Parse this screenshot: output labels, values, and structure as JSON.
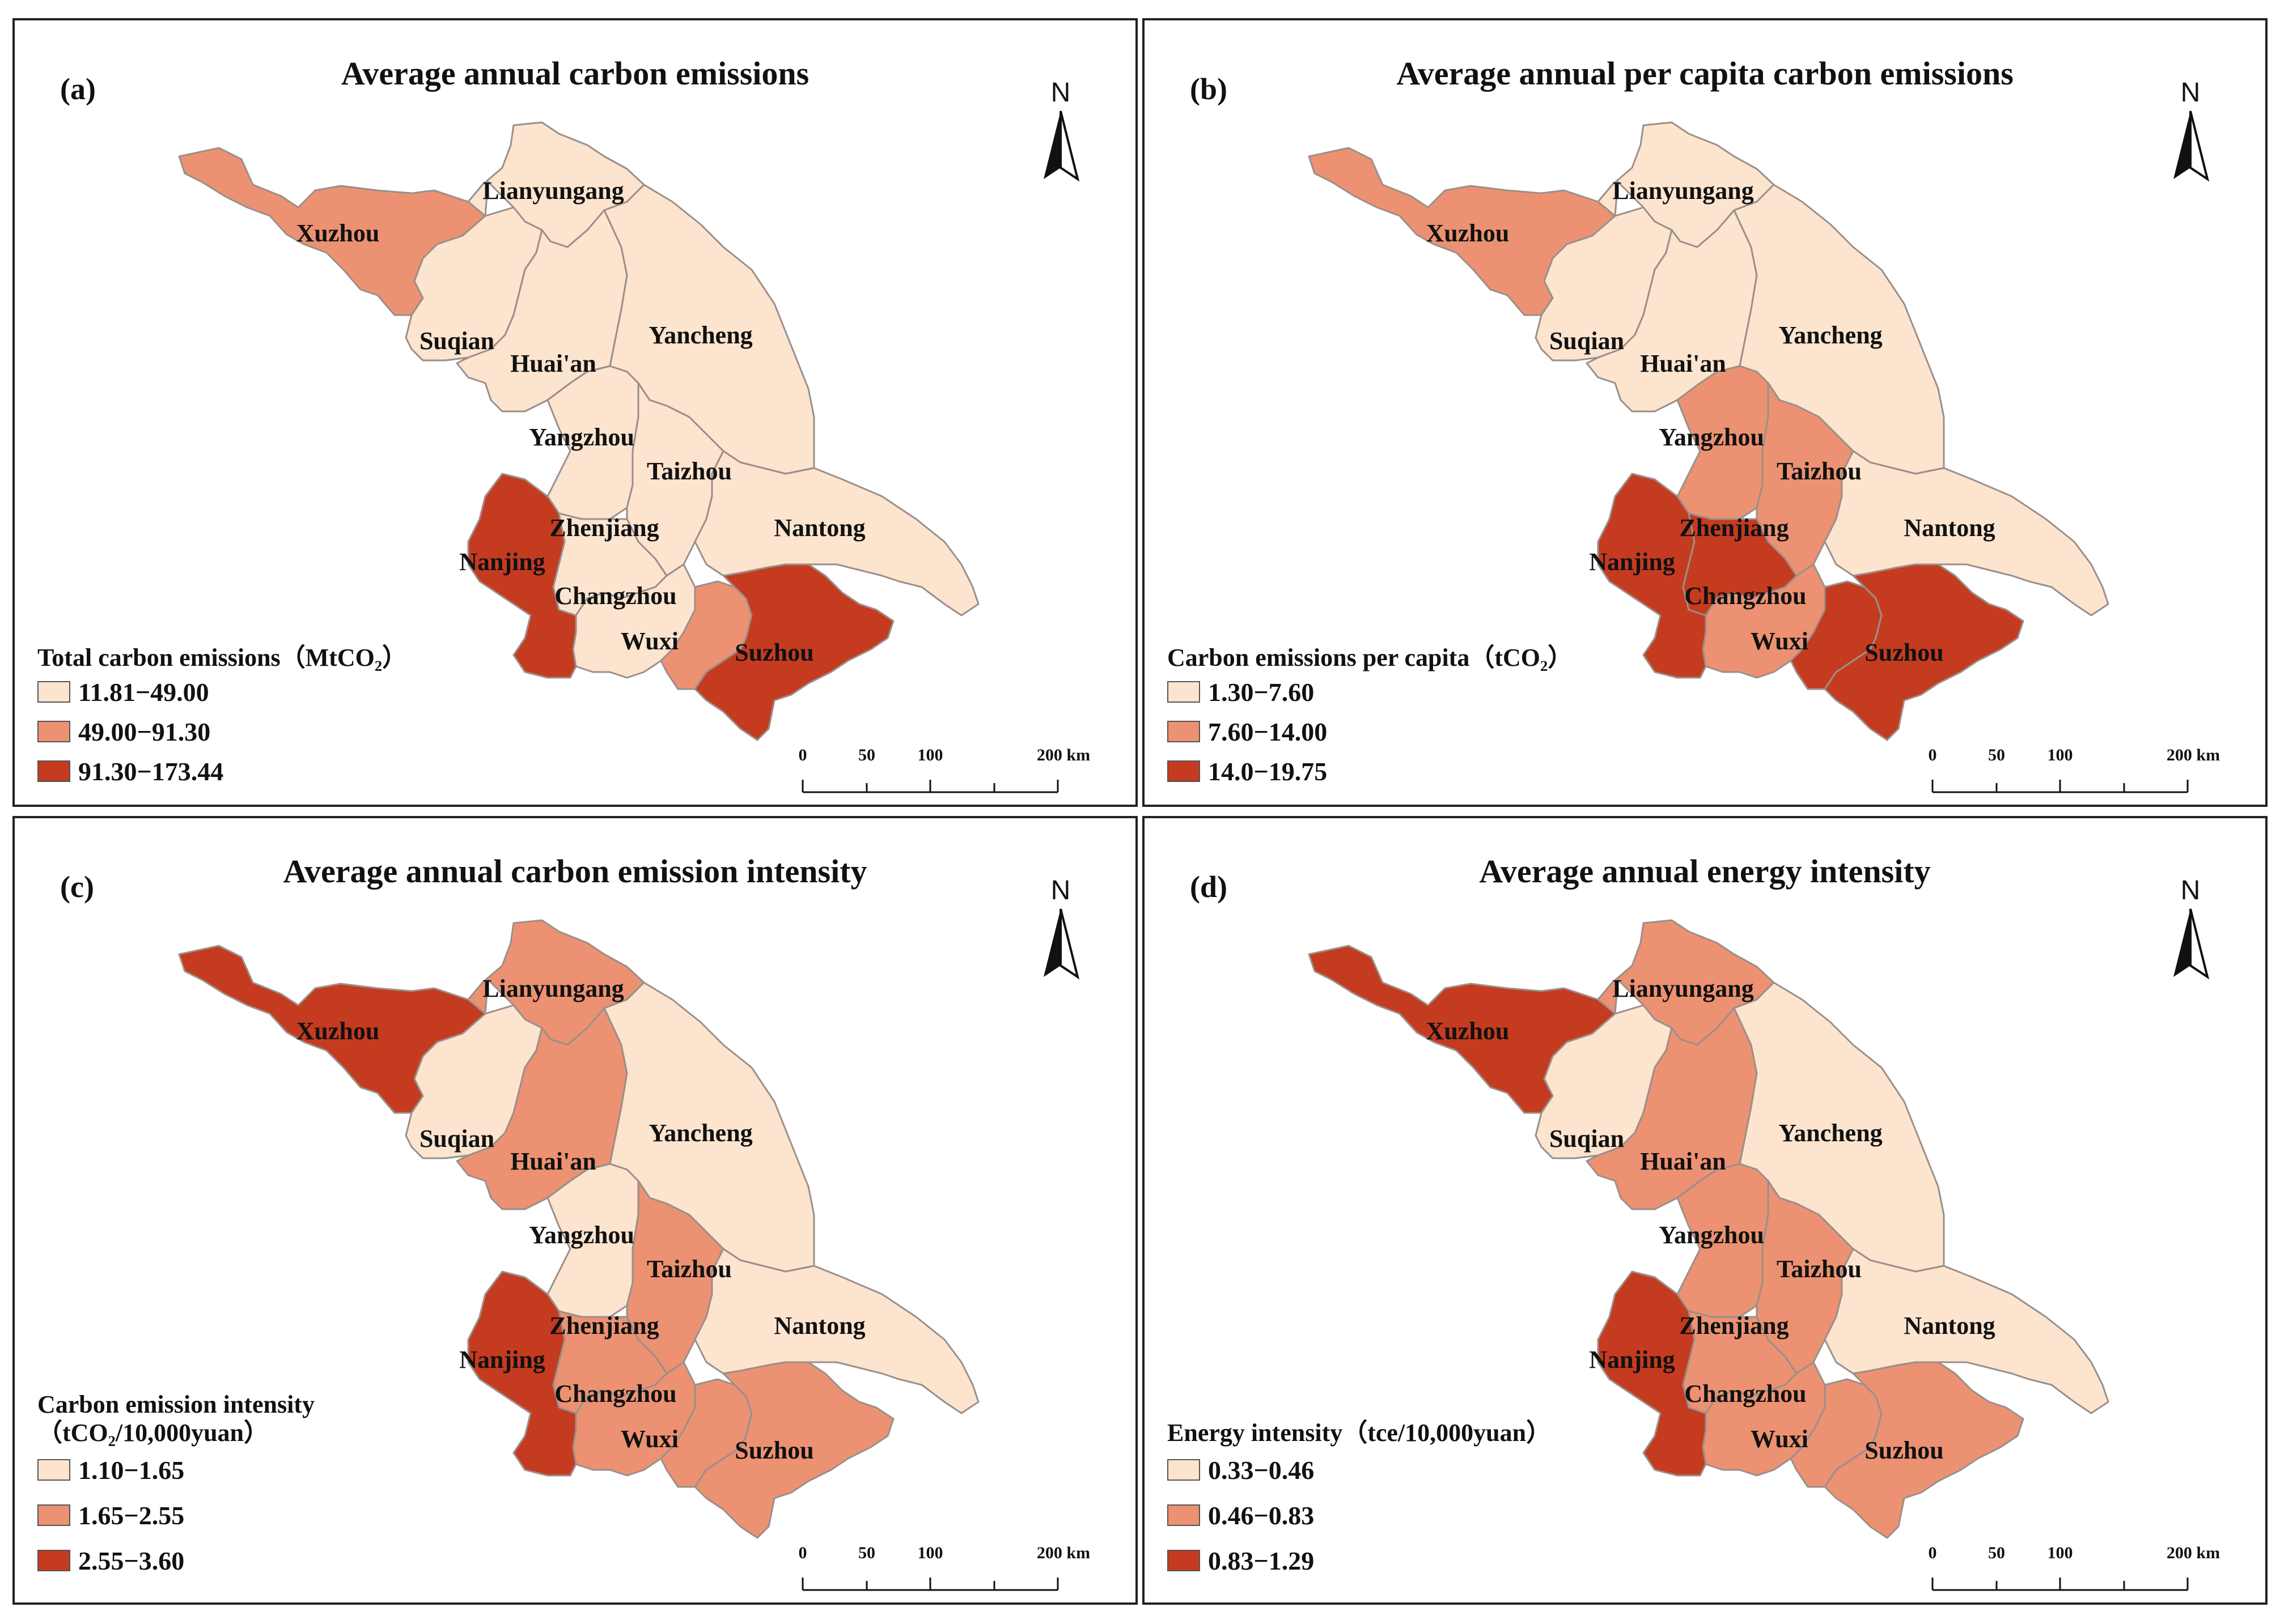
{
  "colors": {
    "low": "#fce4cf",
    "mid": "#ec9272",
    "high": "#c53b1f",
    "border": "#9a8f8a"
  },
  "cities": [
    "Xuzhou",
    "Lianyungang",
    "Suqian",
    "Huai'an",
    "Yancheng",
    "Yangzhou",
    "Taizhou",
    "Nantong",
    "Nanjing",
    "Zhenjiang",
    "Changzhou",
    "Wuxi",
    "Suzhou"
  ],
  "north_label": "N",
  "scale_labels": [
    "0",
    "50",
    "100",
    "200 km"
  ],
  "panels": [
    {
      "label": "(a)",
      "title": "Average annual carbon emissions",
      "legend_title": [
        "Total carbon emissions（MtCO₂）"
      ],
      "legend_items": [
        "11.81−49.00",
        "49.00−91.30",
        "91.30−173.44"
      ],
      "classes": {
        "Xuzhou": "mid",
        "Lianyungang": "low",
        "Suqian": "low",
        "Huai'an": "low",
        "Yancheng": "low",
        "Yangzhou": "low",
        "Taizhou": "low",
        "Nantong": "low",
        "Nanjing": "high",
        "Zhenjiang": "low",
        "Changzhou": "low",
        "Wuxi": "mid",
        "Suzhou": "high"
      }
    },
    {
      "label": "(b)",
      "title": "Average annual per capita carbon emissions",
      "legend_title": [
        "Carbon emissions per capita（tCO₂）"
      ],
      "legend_items": [
        "1.30−7.60",
        "7.60−14.00",
        "14.0−19.75"
      ],
      "classes": {
        "Xuzhou": "mid",
        "Lianyungang": "low",
        "Suqian": "low",
        "Huai'an": "low",
        "Yancheng": "low",
        "Yangzhou": "mid",
        "Taizhou": "mid",
        "Nantong": "low",
        "Nanjing": "high",
        "Zhenjiang": "high",
        "Changzhou": "mid",
        "Wuxi": "high",
        "Suzhou": "high"
      }
    },
    {
      "label": "(c)",
      "title": "Average annual carbon emission intensity",
      "legend_title": [
        "Carbon emission intensity",
        "（tCO₂/10,000yuan）"
      ],
      "legend_items": [
        "1.10−1.65",
        "1.65−2.55",
        "2.55−3.60"
      ],
      "classes": {
        "Xuzhou": "high",
        "Lianyungang": "mid",
        "Suqian": "low",
        "Huai'an": "mid",
        "Yancheng": "low",
        "Yangzhou": "low",
        "Taizhou": "mid",
        "Nantong": "low",
        "Nanjing": "high",
        "Zhenjiang": "mid",
        "Changzhou": "mid",
        "Wuxi": "mid",
        "Suzhou": "mid"
      }
    },
    {
      "label": "(d)",
      "title": "Average annual energy intensity",
      "legend_title": [
        "Energy intensity（tce/10,000yuan）"
      ],
      "legend_items": [
        "0.33−0.46",
        "0.46−0.83",
        "0.83−1.29"
      ],
      "classes": {
        "Xuzhou": "high",
        "Lianyungang": "mid",
        "Suqian": "low",
        "Huai'an": "mid",
        "Yancheng": "low",
        "Yangzhou": "mid",
        "Taizhou": "mid",
        "Nantong": "low",
        "Nanjing": "high",
        "Zhenjiang": "mid",
        "Changzhou": "mid",
        "Wuxi": "mid",
        "Suzhou": "mid"
      }
    }
  ]
}
